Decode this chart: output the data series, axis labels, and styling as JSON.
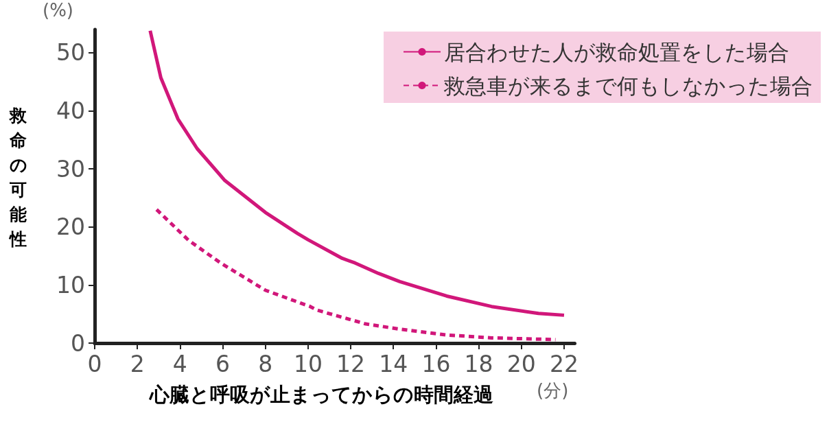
{
  "chart_data": {
    "type": "line",
    "xlabel": "心臓と呼吸が止まってからの時間経過",
    "ylabel": "救命の可能性",
    "annotations": [
      "(%)",
      "(分)"
    ],
    "xlim": [
      0,
      22.5
    ],
    "xticks": [
      0,
      2,
      4,
      6,
      8,
      10,
      12,
      14,
      16,
      18,
      20,
      22
    ],
    "ylim": [
      0,
      54
    ],
    "yticks": [
      0,
      10,
      20,
      30,
      40,
      50
    ],
    "grid": false,
    "legend": "top right",
    "marker": "none",
    "series": [
      {
        "name": "居合わせた人が救命処置をした場合",
        "color": "#d1177a",
        "line_style": "solid",
        "x": [
          2.6,
          3.1,
          3.9,
          4.8,
          6.1,
          8,
          9.5,
          10,
          11.6,
          12.2,
          13.3,
          14.3,
          16.5,
          18.6,
          20.8,
          22
        ],
        "values": [
          53.8,
          45.7,
          38.6,
          33.5,
          28,
          22.5,
          18.9,
          17.8,
          14.6,
          13.8,
          12,
          10.6,
          8.1,
          6.3,
          5.1,
          4.8
        ]
      },
      {
        "name": "救急車が来るまで何もしなかった場合",
        "color": "#d1177a",
        "line_style": "dashed",
        "x": [
          2.9,
          4.4,
          5.9,
          8,
          10.1,
          10.4,
          12.7,
          14.3,
          16.5,
          18.6,
          21.6
        ],
        "values": [
          23,
          17.7,
          13.8,
          9.1,
          6.3,
          5.7,
          3.3,
          2.4,
          1.4,
          0.9,
          0.6
        ]
      }
    ]
  }
}
